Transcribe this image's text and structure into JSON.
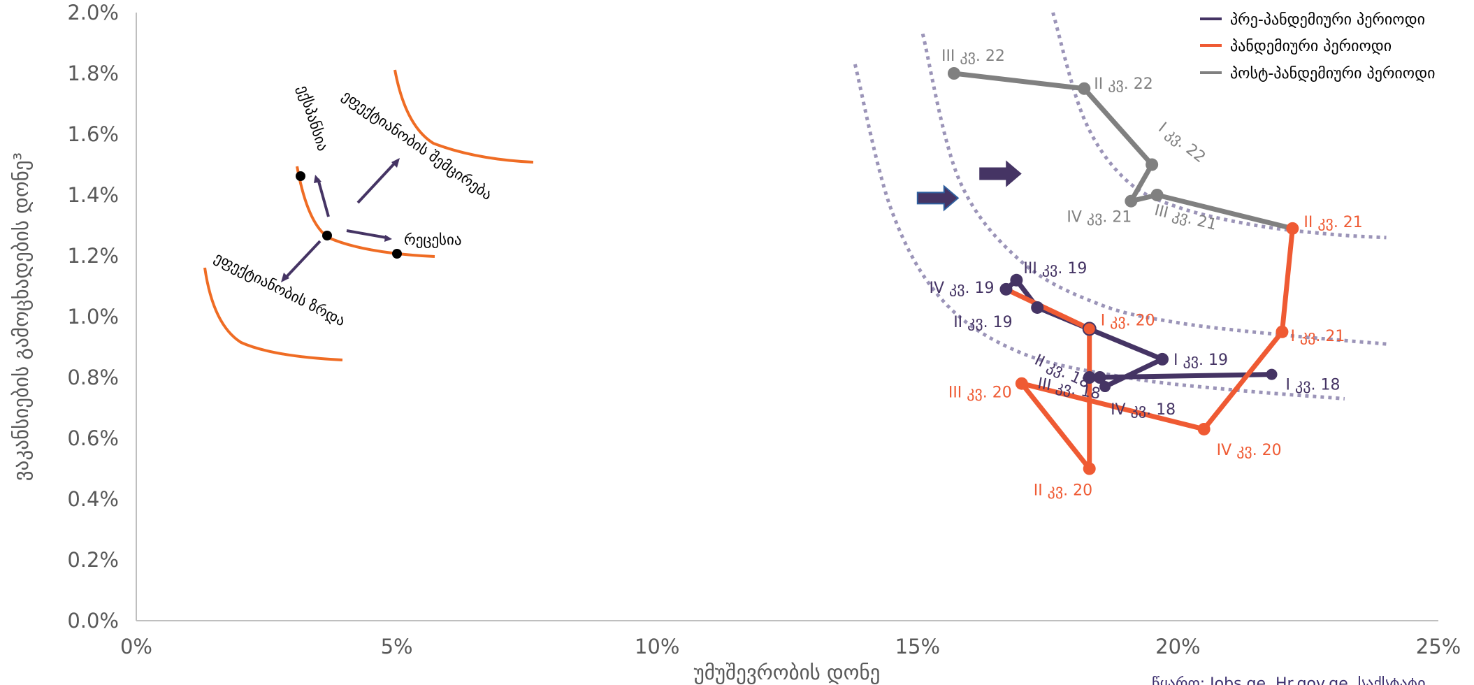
{
  "chart_data": {
    "type": "line",
    "title": "",
    "xlabel": "უმუშევრობის დონე",
    "ylabel": "ვაკანსიების გამოცხადების დონე³",
    "xlim": [
      0,
      25
    ],
    "ylim": [
      0,
      2
    ],
    "x_ticks": [
      "0%",
      "5%",
      "10%",
      "15%",
      "20%",
      "25%"
    ],
    "y_ticks": [
      "0.0%",
      "0.2%",
      "0.4%",
      "0.6%",
      "0.8%",
      "1.0%",
      "1.2%",
      "1.4%",
      "1.6%",
      "1.8%",
      "2.0%"
    ],
    "grid": false,
    "legend_position": "top-right",
    "series": [
      {
        "name": "პრე-პანდემიური პერიოდი",
        "color": "#453464",
        "points": [
          {
            "x": 21.8,
            "y": 0.81,
            "label": "I კვ. 18"
          },
          {
            "x": 18.3,
            "y": 0.8,
            "label": "II კვ. 18"
          },
          {
            "x": 18.5,
            "y": 0.8,
            "label": "III კვ. 18"
          },
          {
            "x": 18.6,
            "y": 0.77,
            "label": "IV კვ. 18"
          },
          {
            "x": 19.7,
            "y": 0.86,
            "label": "I კვ. 19"
          },
          {
            "x": 17.3,
            "y": 1.03,
            "label": "II კვ. 19"
          },
          {
            "x": 16.9,
            "y": 1.12,
            "label": "III კვ. 19"
          },
          {
            "x": 16.7,
            "y": 1.09,
            "label": "IV კვ. 19"
          }
        ]
      },
      {
        "name": "პანდემიური პერიოდი",
        "color": "#ef5a33",
        "points": [
          {
            "x": 16.7,
            "y": 1.09,
            "label": ""
          },
          {
            "x": 18.3,
            "y": 0.96,
            "label": "I კვ. 20"
          },
          {
            "x": 18.3,
            "y": 0.5,
            "label": "II კვ. 20"
          },
          {
            "x": 17.0,
            "y": 0.78,
            "label": "III კვ. 20"
          },
          {
            "x": 20.5,
            "y": 0.63,
            "label": "IV კვ. 20"
          },
          {
            "x": 22.0,
            "y": 0.95,
            "label": "I კვ. 21"
          },
          {
            "x": 22.2,
            "y": 1.29,
            "label": "II კვ. 21"
          }
        ]
      },
      {
        "name": "პოსტ-პანდემიური პერიოდი",
        "color": "#808080",
        "points": [
          {
            "x": 22.2,
            "y": 1.29,
            "label": ""
          },
          {
            "x": 19.6,
            "y": 1.4,
            "label": "III კვ. 21"
          },
          {
            "x": 19.1,
            "y": 1.38,
            "label": "IV კვ. 21"
          },
          {
            "x": 19.5,
            "y": 1.5,
            "label": "I კვ. 22"
          },
          {
            "x": 18.2,
            "y": 1.75,
            "label": "II კვ. 22"
          },
          {
            "x": 15.7,
            "y": 1.8,
            "label": "III კვ. 22"
          }
        ]
      }
    ],
    "beveridge_curves": [
      {
        "x": [
          13.8,
          14.5,
          15.5,
          17.0,
          19.0,
          21.0,
          23.2
        ],
        "y": [
          1.83,
          1.35,
          1.05,
          0.88,
          0.8,
          0.76,
          0.73
        ]
      },
      {
        "x": [
          15.1,
          15.8,
          17.0,
          18.5,
          20.0,
          22.0,
          24.0
        ],
        "y": [
          1.93,
          1.45,
          1.18,
          1.04,
          0.98,
          0.94,
          0.91
        ]
      },
      {
        "x": [
          17.6,
          18.2,
          19.0,
          20.0,
          21.5,
          23.0,
          24.0
        ],
        "y": [
          2.0,
          1.65,
          1.45,
          1.36,
          1.3,
          1.27,
          1.26
        ]
      }
    ],
    "shift_arrows": [
      {
        "x": 15.0,
        "y": 1.39
      },
      {
        "x": 16.2,
        "y": 1.47
      }
    ],
    "schematic": {
      "labels": {
        "expansion": "ექსპანსია",
        "efficiency_decrease": "ეფექტიანობის შემცირება",
        "recession": "რეცესია",
        "efficiency_growth": "ეფექტიანობის ზრდა"
      }
    }
  },
  "legend": {
    "pre": "პრე-პანდემიური პერიოდი",
    "pandemic": "პანდემიური პერიოდი",
    "post": "პოსტ-პანდემიური პერიოდი"
  },
  "source": "წყარო: Jobs.ge, Hr.gov.ge, საქსტატი",
  "colors": {
    "pre": "#453464",
    "pandemic": "#ef5a33",
    "post": "#808080",
    "curve": "#9b94b8",
    "schematic_curve": "#ef6c24",
    "axis": "#bfbfbf"
  }
}
